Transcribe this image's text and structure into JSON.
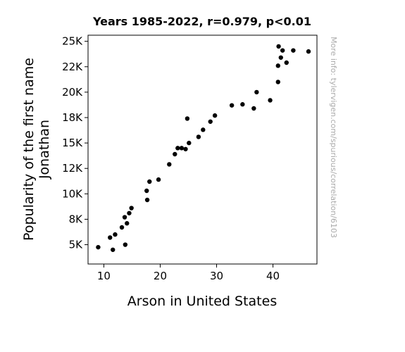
{
  "chart_data": {
    "type": "scatter",
    "title": "Years 1985-2022, r=0.979, p<0.01",
    "xlabel": "Arson in United States",
    "ylabel_lines": [
      "Popularity of the first name",
      "Jonathan"
    ],
    "xlim": [
      7.2,
      47.8
    ],
    "ylim": [
      3100,
      25600
    ],
    "xticks": [
      {
        "value": 10,
        "label": "10"
      },
      {
        "value": 20,
        "label": "20"
      },
      {
        "value": 30,
        "label": "30"
      },
      {
        "value": 40,
        "label": "40"
      }
    ],
    "yticks": [
      {
        "value": 5000,
        "label": "5K"
      },
      {
        "value": 7500,
        "label": "8K"
      },
      {
        "value": 10000,
        "label": "10K"
      },
      {
        "value": 12500,
        "label": "12K"
      },
      {
        "value": 15000,
        "label": "15K"
      },
      {
        "value": 17500,
        "label": "18K"
      },
      {
        "value": 20000,
        "label": "20K"
      },
      {
        "value": 22500,
        "label": "22K"
      },
      {
        "value": 25000,
        "label": "25K"
      }
    ],
    "marker_color": "#000000",
    "points": [
      {
        "x": 9.0,
        "y": 4750
      },
      {
        "x": 11.1,
        "y": 5700
      },
      {
        "x": 11.6,
        "y": 4500
      },
      {
        "x": 12.0,
        "y": 6000
      },
      {
        "x": 13.2,
        "y": 6700
      },
      {
        "x": 13.7,
        "y": 7700
      },
      {
        "x": 13.8,
        "y": 5000
      },
      {
        "x": 14.1,
        "y": 7100
      },
      {
        "x": 14.5,
        "y": 8100
      },
      {
        "x": 14.9,
        "y": 8600
      },
      {
        "x": 17.6,
        "y": 10300
      },
      {
        "x": 17.7,
        "y": 9400
      },
      {
        "x": 18.1,
        "y": 11200
      },
      {
        "x": 19.7,
        "y": 11400
      },
      {
        "x": 21.6,
        "y": 12900
      },
      {
        "x": 22.6,
        "y": 13900
      },
      {
        "x": 23.1,
        "y": 14500
      },
      {
        "x": 23.8,
        "y": 14500
      },
      {
        "x": 24.5,
        "y": 14400
      },
      {
        "x": 24.8,
        "y": 17400
      },
      {
        "x": 25.1,
        "y": 15000
      },
      {
        "x": 26.8,
        "y": 15600
      },
      {
        "x": 27.6,
        "y": 16300
      },
      {
        "x": 28.9,
        "y": 17100
      },
      {
        "x": 29.7,
        "y": 17700
      },
      {
        "x": 32.7,
        "y": 18700
      },
      {
        "x": 34.6,
        "y": 18800
      },
      {
        "x": 36.6,
        "y": 18400
      },
      {
        "x": 37.1,
        "y": 20000
      },
      {
        "x": 39.5,
        "y": 19200
      },
      {
        "x": 40.9,
        "y": 21000
      },
      {
        "x": 40.9,
        "y": 22600
      },
      {
        "x": 41.0,
        "y": 24500
      },
      {
        "x": 41.4,
        "y": 23400
      },
      {
        "x": 41.7,
        "y": 24100
      },
      {
        "x": 42.4,
        "y": 22900
      },
      {
        "x": 43.6,
        "y": 24100
      },
      {
        "x": 46.3,
        "y": 24000
      }
    ]
  },
  "watermark": "More info: tylervigen.com/spurious/correlation/6103"
}
